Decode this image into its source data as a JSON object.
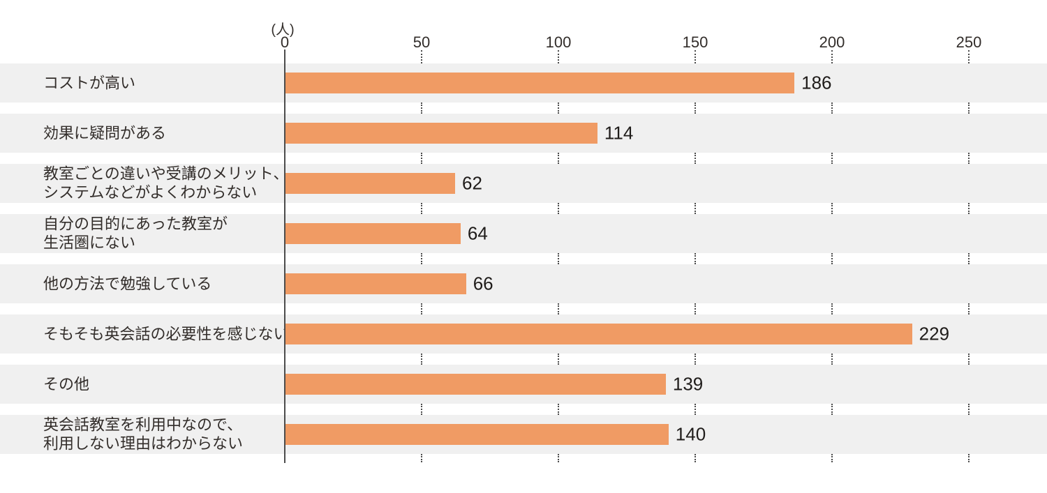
{
  "chart_data": {
    "type": "bar",
    "orientation": "horizontal",
    "title": "",
    "unit_label": "(人)",
    "xlabel": "",
    "ylabel": "",
    "xticks": [
      0,
      50,
      100,
      150,
      200,
      250
    ],
    "xlim": [
      0,
      278
    ],
    "grid": "dotted-vertical-at-ticks",
    "legend": "none",
    "bar_color": "#f09b64",
    "row_band_color": "#f0f0f0",
    "categories": [
      "コストが高い",
      "効果に疑問がある",
      "教室ごとの違いや受講のメリット、\nシステムなどがよくわからない",
      "自分の目的にあった教室が\n生活圏にない",
      "他の方法で勉強している",
      "そもそも英会話の必要性を感じない",
      "その他",
      "英会話教室を利用中なので、\n利用しない理由はわからない"
    ],
    "values": [
      186,
      114,
      62,
      64,
      66,
      229,
      139,
      140
    ]
  }
}
